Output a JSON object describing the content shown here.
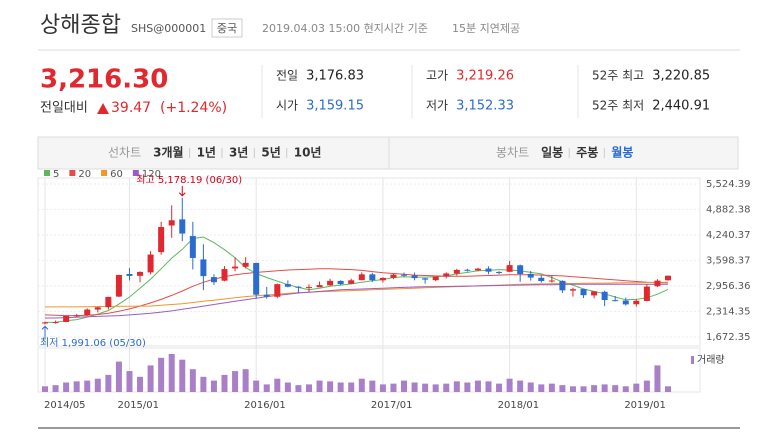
{
  "header": {
    "title": "상해종합",
    "code": "SHS@000001",
    "badge": "중국",
    "time": "2019.04.03 15:00 현지시간 기준",
    "delay": "15분 지연제공"
  },
  "quote": {
    "price": "3,216.30",
    "change_label": "전일대비",
    "change": "39.47",
    "change_pct": "(+1.24%)",
    "items": [
      {
        "label": "전일",
        "value": "3,176.83",
        "tone": "plain"
      },
      {
        "label": "고가",
        "value": "3,219.26",
        "tone": "up"
      },
      {
        "label": "52주 최고",
        "value": "3,220.85",
        "tone": "plain"
      },
      {
        "label": "시가",
        "value": "3,159.15",
        "tone": "down"
      },
      {
        "label": "저가",
        "value": "3,152.33",
        "tone": "down"
      },
      {
        "label": "52주 최저",
        "value": "2,440.91",
        "tone": "plain"
      }
    ]
  },
  "tabs": {
    "line_label": "선차트",
    "line_periods": [
      "3개월",
      "1년",
      "3년",
      "5년",
      "10년"
    ],
    "candle_label": "봉차트",
    "candle_periods": [
      "일봉",
      "주봉",
      "월봉"
    ],
    "selected": "월봉"
  },
  "chart_data": {
    "type": "candlestick",
    "grid": true,
    "up_color": "#e0282e",
    "down_color": "#2a6ccf",
    "categories": [
      "2014/05",
      "2014/06",
      "2014/07",
      "2014/08",
      "2014/09",
      "2014/10",
      "2014/11",
      "2014/12",
      "2015/01",
      "2015/02",
      "2015/03",
      "2015/04",
      "2015/05",
      "2015/06",
      "2015/07",
      "2015/08",
      "2015/09",
      "2015/10",
      "2015/11",
      "2015/12",
      "2016/01",
      "2016/02",
      "2016/03",
      "2016/04",
      "2016/05",
      "2016/06",
      "2016/07",
      "2016/08",
      "2016/09",
      "2016/10",
      "2016/11",
      "2016/12",
      "2017/01",
      "2017/02",
      "2017/03",
      "2017/04",
      "2017/05",
      "2017/06",
      "2017/07",
      "2017/08",
      "2017/09",
      "2017/10",
      "2017/11",
      "2017/12",
      "2018/01",
      "2018/02",
      "2018/03",
      "2018/04",
      "2018/05",
      "2018/06",
      "2018/07",
      "2018/08",
      "2018/09",
      "2018/10",
      "2018/11",
      "2018/12",
      "2019/01",
      "2019/02",
      "2019/03",
      "2019/04"
    ],
    "open": [
      2026,
      2040,
      2050,
      2200,
      2219,
      2363,
      2423,
      2690,
      3258,
      3212,
      3300,
      3810,
      4480,
      4634,
      4214,
      3626,
      3180,
      3090,
      3400,
      3440,
      3536,
      2735,
      2685,
      3004,
      2938,
      2917,
      2925,
      2973,
      3084,
      3010,
      3104,
      3250,
      3100,
      3160,
      3240,
      3220,
      3150,
      3104,
      3195,
      3270,
      3365,
      3350,
      3395,
      3310,
      3314,
      3478,
      3260,
      3163,
      3080,
      3085,
      2840,
      2880,
      2720,
      2810,
      2600,
      2590,
      2497,
      2580,
      2950,
      3100
    ],
    "high": [
      2061,
      2087,
      2204,
      2248,
      2391,
      2430,
      2683,
      3239,
      3406,
      3325,
      3835,
      4572,
      4986,
      5178,
      4573,
      4006,
      3254,
      3457,
      3678,
      3684,
      3539,
      2931,
      3018,
      3097,
      2950,
      2998,
      3070,
      3140,
      3100,
      3140,
      3301,
      3288,
      3177,
      3260,
      3295,
      3295,
      3160,
      3195,
      3300,
      3390,
      3390,
      3415,
      3450,
      3330,
      3587,
      3495,
      3335,
      3220,
      3219,
      3100,
      2915,
      2894,
      2827,
      2838,
      2703,
      2666,
      2618,
      2997,
      3129,
      3219
    ],
    "low": [
      1991,
      2010,
      2044,
      2172,
      2204,
      2289,
      2366,
      2678,
      3095,
      3050,
      3250,
      3744,
      4170,
      4086,
      3373,
      2850,
      2983,
      3074,
      3327,
      3400,
      2638,
      2638,
      2650,
      2923,
      2780,
      2807,
      2928,
      2962,
      2969,
      3003,
      3100,
      3056,
      3045,
      3130,
      3180,
      3100,
      3016,
      3080,
      3150,
      3220,
      3320,
      3330,
      3253,
      3254,
      3305,
      3062,
      3091,
      3041,
      3041,
      2782,
      2691,
      2653,
      2644,
      2449,
      2568,
      2462,
      2440,
      2571,
      2930,
      3093
    ],
    "close": [
      2039,
      2048,
      2201,
      2217,
      2364,
      2420,
      2682,
      3234,
      3210,
      3310,
      3748,
      4441,
      4611,
      4277,
      3663,
      3205,
      3052,
      3382,
      3445,
      3539,
      2737,
      2688,
      3003,
      2938,
      2917,
      2929,
      2979,
      3085,
      3004,
      3100,
      3250,
      3104,
      3159,
      3242,
      3223,
      3155,
      3117,
      3192,
      3273,
      3361,
      3349,
      3393,
      3317,
      3307,
      3481,
      3259,
      3169,
      3082,
      3095,
      2847,
      2876,
      2725,
      2821,
      2603,
      2588,
      2494,
      2585,
      2941,
      3091,
      3216
    ],
    "ylim": [
      1672.35,
      5524.39
    ],
    "yticks": [
      {
        "value": 5524.39,
        "label": "5,524.39"
      },
      {
        "value": 4882.38,
        "label": "4,882.38"
      },
      {
        "value": 4240.37,
        "label": "4,240.37"
      },
      {
        "value": 3598.37,
        "label": "3,598.37"
      },
      {
        "value": 2956.36,
        "label": "2,956.36"
      },
      {
        "value": 2314.35,
        "label": "2,314.35"
      },
      {
        "value": 1672.35,
        "label": "1,672.35"
      }
    ],
    "xticks": [
      "2014/05",
      "2015/01",
      "2016/01",
      "2017/01",
      "2018/01",
      "2019/01"
    ],
    "series": [
      {
        "name": "5",
        "color": "#5cb85c",
        "values": [
          2040,
          2045,
          2080,
          2110,
          2170,
          2250,
          2340,
          2500,
          2680,
          2900,
          3130,
          3390,
          3660,
          3880,
          4150,
          4190,
          4050,
          3870,
          3670,
          3420,
          3270,
          3170,
          3080,
          2990,
          2920,
          2860,
          2900,
          2950,
          2980,
          3010,
          3050,
          3090,
          3120,
          3170,
          3190,
          3180,
          3180,
          3190,
          3210,
          3260,
          3300,
          3340,
          3350,
          3370,
          3360,
          3340,
          3300,
          3260,
          3170,
          3060,
          2980,
          2880,
          2820,
          2760,
          2680,
          2610,
          2620,
          2660,
          2750,
          2870
        ]
      },
      {
        "name": "20",
        "color": "#e64b4b",
        "values": [
          2230,
          2220,
          2210,
          2210,
          2220,
          2240,
          2270,
          2320,
          2380,
          2450,
          2530,
          2620,
          2720,
          2830,
          2950,
          3050,
          3130,
          3190,
          3240,
          3270,
          3300,
          3320,
          3340,
          3360,
          3370,
          3380,
          3390,
          3390,
          3380,
          3370,
          3350,
          3320,
          3290,
          3270,
          3250,
          3230,
          3220,
          3210,
          3200,
          3200,
          3200,
          3210,
          3220,
          3230,
          3240,
          3240,
          3240,
          3230,
          3220,
          3210,
          3190,
          3170,
          3150,
          3130,
          3110,
          3090,
          3070,
          3050,
          3040,
          3040
        ]
      },
      {
        "name": "60",
        "color": "#f0962a",
        "values": [
          2430,
          2430,
          2430,
          2430,
          2435,
          2440,
          2440,
          2445,
          2445,
          2450,
          2450,
          2470,
          2490,
          2510,
          2540,
          2570,
          2600,
          2630,
          2660,
          2690,
          2710,
          2730,
          2750,
          2770,
          2790,
          2800,
          2810,
          2820,
          2830,
          2840,
          2850,
          2860,
          2870,
          2880,
          2890,
          2900,
          2910,
          2920,
          2930,
          2940,
          2950,
          2960,
          2970,
          2980,
          2990,
          3000,
          3005,
          3010,
          3015,
          3020,
          3020,
          3025,
          3030,
          3030,
          3035,
          3040,
          3040,
          3045,
          3050,
          3050
        ]
      },
      {
        "name": "120",
        "color": "#9a5cc6",
        "values": [
          2150,
          2150,
          2160,
          2170,
          2180,
          2190,
          2200,
          2210,
          2230,
          2250,
          2270,
          2300,
          2330,
          2370,
          2410,
          2450,
          2490,
          2530,
          2570,
          2610,
          2650,
          2690,
          2720,
          2750,
          2780,
          2800,
          2820,
          2840,
          2860,
          2870,
          2880,
          2890,
          2900,
          2910,
          2920,
          2930,
          2935,
          2940,
          2945,
          2950,
          2955,
          2960,
          2965,
          2970,
          2975,
          2980,
          2985,
          2990,
          2990,
          2995,
          3000,
          3000,
          3000,
          3000,
          3000,
          3000,
          3000,
          3000,
          3000,
          3000
        ]
      }
    ],
    "annotations": [
      {
        "text": "최고 5,178.19 (06/30)",
        "color": "#d0021b"
      },
      {
        "text": "최저 1,991.06 (05/30)",
        "color": "#2a6ccf"
      }
    ],
    "volume": {
      "name": "거래량",
      "color": "#a97fc8",
      "ylim": [
        0,
        100
      ],
      "values": [
        15,
        18,
        25,
        28,
        30,
        35,
        45,
        80,
        55,
        40,
        70,
        90,
        100,
        85,
        60,
        40,
        30,
        45,
        55,
        60,
        30,
        20,
        35,
        25,
        18,
        20,
        30,
        28,
        25,
        25,
        35,
        30,
        20,
        22,
        30,
        25,
        22,
        20,
        22,
        28,
        25,
        30,
        28,
        22,
        35,
        30,
        25,
        20,
        22,
        18,
        15,
        15,
        18,
        20,
        18,
        15,
        22,
        30,
        70,
        15
      ]
    }
  }
}
